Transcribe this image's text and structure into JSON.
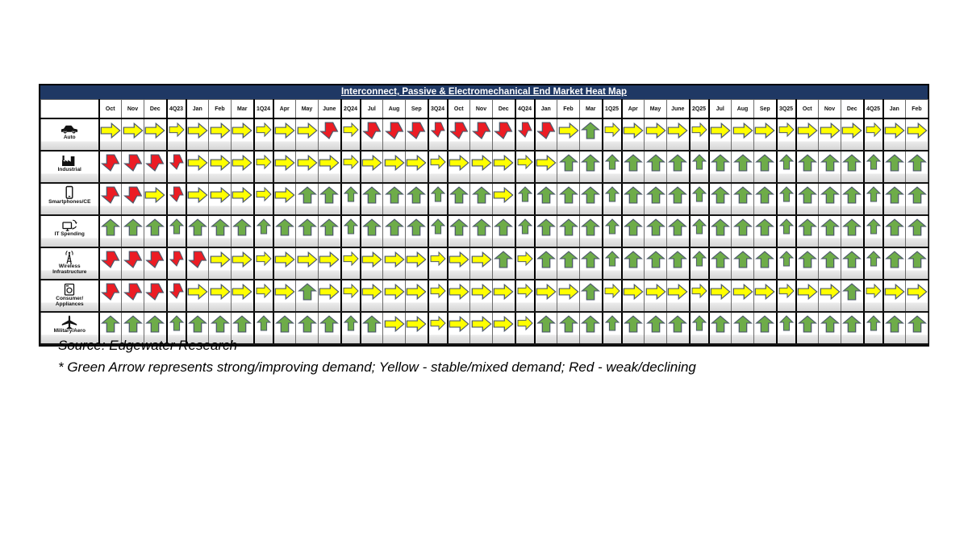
{
  "title": "Interconnect, Passive & Electromechanical End Market Heat Map",
  "source_text": "Source: Edgewater Research",
  "footnote_text": "* Green Arrow represents strong/improving demand; Yellow - stable/mixed demand; Red - weak/declining",
  "colors": {
    "title_bar": "#1F3864",
    "green": "#6EAC49",
    "yellow": "#FFFF00",
    "red": "#EC1C24",
    "arrow_outline": "#4d5a6b"
  },
  "chart_data": {
    "type": "heatmap",
    "legend": {
      "G": "green up arrow - strong/improving demand",
      "Y": "yellow right arrow - stable/mixed demand",
      "R": "red down arrow - weak/declining demand"
    },
    "columns": [
      "Oct",
      "Nov",
      "Dec",
      "4Q23",
      "Jan",
      "Feb",
      "Mar",
      "1Q24",
      "Apr",
      "May",
      "June",
      "2Q24",
      "Jul",
      "Aug",
      "Sep",
      "3Q24",
      "Oct",
      "Nov",
      "Dec",
      "4Q24",
      "Jan",
      "Feb",
      "Mar",
      "1Q25",
      "Apr",
      "May",
      "June",
      "2Q25",
      "Jul",
      "Aug",
      "Sep",
      "3Q25",
      "Oct",
      "Nov",
      "Dec",
      "4Q25",
      "Jan",
      "Feb"
    ],
    "rows": [
      {
        "label": "Auto",
        "icon": "car-icon",
        "values": [
          "Y",
          "Y",
          "Y",
          "Y",
          "Y",
          "Y",
          "Y",
          "Y",
          "Y",
          "Y",
          "R",
          "Y",
          "R",
          "R",
          "R",
          "R",
          "R",
          "R",
          "R",
          "R",
          "R",
          "Y",
          "G",
          "Y",
          "Y",
          "Y",
          "Y",
          "Y",
          "Y",
          "Y",
          "Y",
          "Y",
          "Y",
          "Y",
          "Y",
          "Y",
          "Y",
          "Y"
        ]
      },
      {
        "label": "Industrial",
        "icon": "factory-icon",
        "values": [
          "R",
          "R",
          "R",
          "R",
          "Y",
          "Y",
          "Y",
          "Y",
          "Y",
          "Y",
          "Y",
          "Y",
          "Y",
          "Y",
          "Y",
          "Y",
          "Y",
          "Y",
          "Y",
          "Y",
          "Y",
          "G",
          "G",
          "G",
          "G",
          "G",
          "G",
          "G",
          "G",
          "G",
          "G",
          "G",
          "G",
          "G",
          "G",
          "G",
          "G",
          "G"
        ]
      },
      {
        "label": "Smartphones/CE",
        "icon": "smartphone-icon",
        "values": [
          "R",
          "R",
          "Y",
          "R",
          "Y",
          "Y",
          "Y",
          "Y",
          "Y",
          "G",
          "G",
          "G",
          "G",
          "G",
          "G",
          "G",
          "G",
          "G",
          "Y",
          "G",
          "G",
          "G",
          "G",
          "G",
          "G",
          "G",
          "G",
          "G",
          "G",
          "G",
          "G",
          "G",
          "G",
          "G",
          "G",
          "G",
          "G",
          "G"
        ]
      },
      {
        "label": "IT Spending",
        "icon": "monitor-sync-icon",
        "values": [
          "G",
          "G",
          "G",
          "G",
          "G",
          "G",
          "G",
          "G",
          "G",
          "G",
          "G",
          "G",
          "G",
          "G",
          "G",
          "G",
          "G",
          "G",
          "G",
          "G",
          "G",
          "G",
          "G",
          "G",
          "G",
          "G",
          "G",
          "G",
          "G",
          "G",
          "G",
          "G",
          "G",
          "G",
          "G",
          "G",
          "G",
          "G"
        ]
      },
      {
        "label": "Wireless Infrastructure",
        "icon": "antenna-tower-icon",
        "values": [
          "R",
          "R",
          "R",
          "R",
          "R",
          "Y",
          "Y",
          "Y",
          "Y",
          "Y",
          "Y",
          "Y",
          "Y",
          "Y",
          "Y",
          "Y",
          "Y",
          "Y",
          "G",
          "Y",
          "G",
          "G",
          "G",
          "G",
          "G",
          "G",
          "G",
          "G",
          "G",
          "G",
          "G",
          "G",
          "G",
          "G",
          "G",
          "G",
          "G",
          "G"
        ]
      },
      {
        "label": "Consumer/ Appliances",
        "icon": "washing-machine-icon",
        "values": [
          "R",
          "R",
          "R",
          "R",
          "Y",
          "Y",
          "Y",
          "Y",
          "Y",
          "G",
          "Y",
          "Y",
          "Y",
          "Y",
          "Y",
          "Y",
          "Y",
          "Y",
          "Y",
          "Y",
          "Y",
          "Y",
          "G",
          "Y",
          "Y",
          "Y",
          "Y",
          "Y",
          "Y",
          "Y",
          "Y",
          "Y",
          "Y",
          "Y",
          "G",
          "Y",
          "Y",
          "Y"
        ]
      },
      {
        "label": "Military/Aero",
        "icon": "airplane-icon",
        "values": [
          "G",
          "G",
          "G",
          "G",
          "G",
          "G",
          "G",
          "G",
          "G",
          "G",
          "G",
          "G",
          "G",
          "Y",
          "Y",
          "Y",
          "Y",
          "Y",
          "Y",
          "Y",
          "G",
          "G",
          "G",
          "G",
          "G",
          "G",
          "G",
          "G",
          "G",
          "G",
          "G",
          "G",
          "G",
          "G",
          "G",
          "G",
          "G",
          "G"
        ]
      }
    ]
  }
}
